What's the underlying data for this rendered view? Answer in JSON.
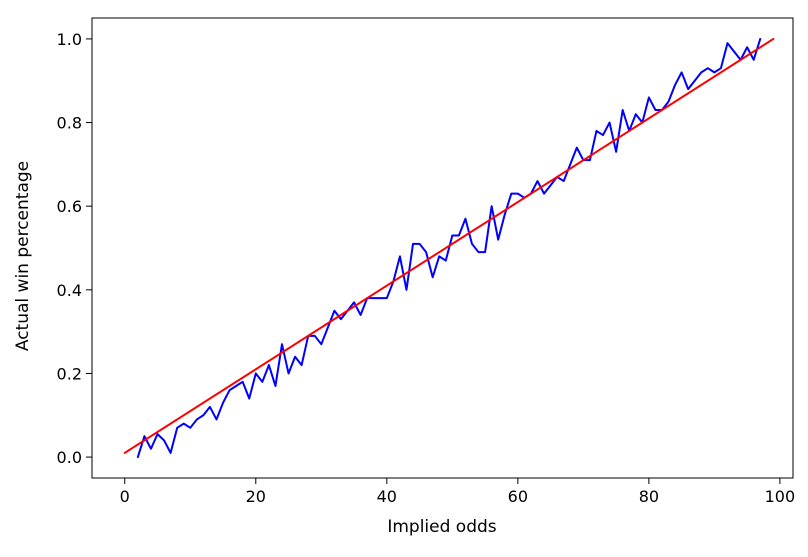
{
  "chart_data": {
    "type": "line",
    "title": "",
    "xlabel": "Implied odds",
    "ylabel": "Actual win percentage",
    "xlim": [
      -5,
      102
    ],
    "ylim": [
      -0.05,
      1.05
    ],
    "grid": false,
    "x_ticks": [
      0,
      20,
      40,
      60,
      80,
      100
    ],
    "x_tick_labels": [
      "0",
      "20",
      "40",
      "60",
      "80",
      "100"
    ],
    "y_ticks": [
      0.0,
      0.2,
      0.4,
      0.6,
      0.8,
      1.0
    ],
    "y_tick_labels": [
      "0.0",
      "0.2",
      "0.4",
      "0.6",
      "0.8",
      "1.0"
    ],
    "series": [
      {
        "color": "#0000ff",
        "x": [
          2,
          3,
          4,
          5,
          6,
          7,
          8,
          9,
          10,
          11,
          12,
          13,
          14,
          15,
          16,
          17,
          18,
          19,
          20,
          21,
          22,
          23,
          24,
          25,
          26,
          27,
          28,
          29,
          30,
          31,
          32,
          33,
          34,
          35,
          36,
          37,
          38,
          39,
          40,
          41,
          42,
          43,
          44,
          45,
          46,
          47,
          48,
          49,
          50,
          51,
          52,
          53,
          54,
          55,
          56,
          57,
          58,
          59,
          60,
          61,
          62,
          63,
          64,
          65,
          66,
          67,
          68,
          69,
          70,
          71,
          72,
          73,
          74,
          75,
          76,
          77,
          78,
          79,
          80,
          81,
          82,
          83,
          84,
          85,
          86,
          87,
          88,
          89,
          90,
          91,
          92,
          93,
          94,
          95,
          96,
          97
        ],
        "y": [
          0.0,
          0.05,
          0.02,
          0.055,
          0.04,
          0.01,
          0.07,
          0.08,
          0.07,
          0.09,
          0.1,
          0.12,
          0.09,
          0.13,
          0.16,
          0.17,
          0.18,
          0.14,
          0.2,
          0.18,
          0.22,
          0.17,
          0.27,
          0.2,
          0.24,
          0.22,
          0.29,
          0.29,
          0.27,
          0.31,
          0.35,
          0.33,
          0.35,
          0.37,
          0.34,
          0.38,
          0.38,
          0.38,
          0.38,
          0.42,
          0.48,
          0.4,
          0.51,
          0.51,
          0.49,
          0.43,
          0.48,
          0.47,
          0.53,
          0.53,
          0.57,
          0.51,
          0.49,
          0.49,
          0.6,
          0.52,
          0.58,
          0.63,
          0.63,
          0.62,
          0.63,
          0.66,
          0.63,
          0.65,
          0.67,
          0.66,
          0.7,
          0.74,
          0.71,
          0.71,
          0.78,
          0.77,
          0.8,
          0.73,
          0.83,
          0.78,
          0.82,
          0.8,
          0.86,
          0.83,
          0.83,
          0.85,
          0.89,
          0.92,
          0.88,
          0.9,
          0.92,
          0.93,
          0.92,
          0.93,
          0.99,
          0.97,
          0.95,
          0.98,
          0.95,
          1.0
        ]
      },
      {
        "color": "#ff0000",
        "x": [
          0,
          99
        ],
        "y": [
          0.01,
          1.0
        ]
      }
    ]
  }
}
